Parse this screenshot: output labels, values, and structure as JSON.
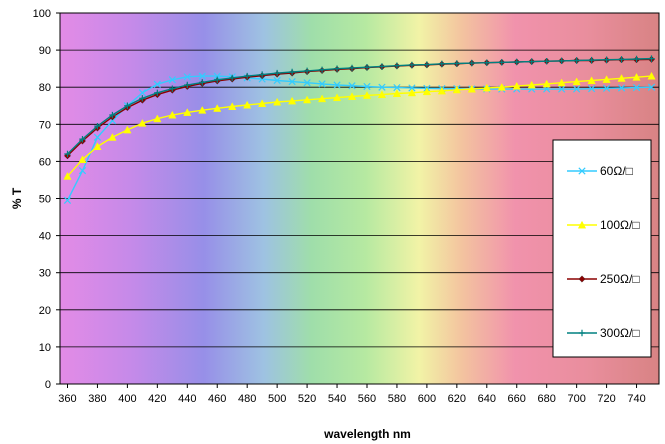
{
  "chart_data": {
    "type": "line",
    "title": "",
    "xlabel": "wavelength nm",
    "ylabel": "% T",
    "xlim": [
      355,
      755
    ],
    "ylim": [
      0,
      100
    ],
    "x_ticks": [
      360,
      380,
      400,
      420,
      440,
      460,
      480,
      500,
      520,
      540,
      560,
      580,
      600,
      620,
      640,
      660,
      680,
      700,
      720,
      740
    ],
    "y_ticks": [
      0,
      10,
      20,
      30,
      40,
      50,
      60,
      70,
      80,
      90,
      100
    ],
    "grid": "horizontal",
    "legend_position": "right",
    "background": "visible-spectrum gradient",
    "x": [
      360,
      370,
      380,
      390,
      400,
      410,
      420,
      430,
      440,
      450,
      460,
      470,
      480,
      490,
      500,
      510,
      520,
      530,
      540,
      550,
      560,
      570,
      580,
      590,
      600,
      610,
      620,
      630,
      640,
      650,
      660,
      670,
      680,
      690,
      700,
      710,
      720,
      730,
      740,
      750
    ],
    "series": [
      {
        "name": "60Ω/□",
        "color": "#33ccff",
        "marker": "x",
        "values": [
          49.5,
          57.5,
          66.5,
          71.0,
          75.0,
          78.5,
          80.8,
          82.0,
          82.8,
          83.0,
          83.0,
          82.8,
          82.5,
          82.2,
          81.8,
          81.5,
          81.2,
          80.9,
          80.6,
          80.4,
          80.2,
          80.0,
          79.9,
          79.8,
          79.7,
          79.6,
          79.6,
          79.5,
          79.5,
          79.5,
          79.5,
          79.5,
          79.5,
          79.5,
          79.5,
          79.6,
          79.7,
          79.8,
          79.9,
          80.0
        ]
      },
      {
        "name": "100Ω/□",
        "color": "#ffff00",
        "marker": "triangle",
        "values": [
          56.0,
          60.5,
          64.0,
          66.5,
          68.5,
          70.3,
          71.5,
          72.5,
          73.2,
          73.8,
          74.3,
          74.8,
          75.2,
          75.6,
          76.0,
          76.3,
          76.6,
          76.9,
          77.2,
          77.5,
          77.8,
          78.0,
          78.3,
          78.5,
          78.8,
          79.0,
          79.3,
          79.5,
          79.8,
          80.0,
          80.3,
          80.6,
          80.9,
          81.2,
          81.5,
          81.8,
          82.1,
          82.4,
          82.7,
          83.0
        ]
      },
      {
        "name": "250Ω/□",
        "color": "#8b0000",
        "marker": "diamond",
        "values": [
          61.5,
          65.5,
          69.0,
          72.0,
          74.5,
          76.5,
          78.0,
          79.2,
          80.2,
          81.0,
          81.7,
          82.2,
          82.7,
          83.1,
          83.5,
          83.8,
          84.2,
          84.5,
          84.8,
          85.0,
          85.3,
          85.5,
          85.7,
          85.9,
          86.0,
          86.2,
          86.3,
          86.5,
          86.6,
          86.7,
          86.8,
          86.9,
          87.0,
          87.1,
          87.2,
          87.2,
          87.3,
          87.4,
          87.4,
          87.5
        ]
      },
      {
        "name": "300Ω/□",
        "color": "#008080",
        "marker": "plus",
        "values": [
          62.0,
          66.0,
          69.5,
          72.5,
          75.0,
          77.0,
          78.5,
          79.6,
          80.6,
          81.3,
          82.0,
          82.5,
          83.0,
          83.4,
          83.8,
          84.1,
          84.4,
          84.7,
          85.0,
          85.2,
          85.4,
          85.6,
          85.8,
          86.0,
          86.1,
          86.3,
          86.4,
          86.5,
          86.6,
          86.7,
          86.8,
          86.9,
          87.0,
          87.1,
          87.2,
          87.3,
          87.4,
          87.5,
          87.6,
          87.7
        ]
      }
    ]
  }
}
